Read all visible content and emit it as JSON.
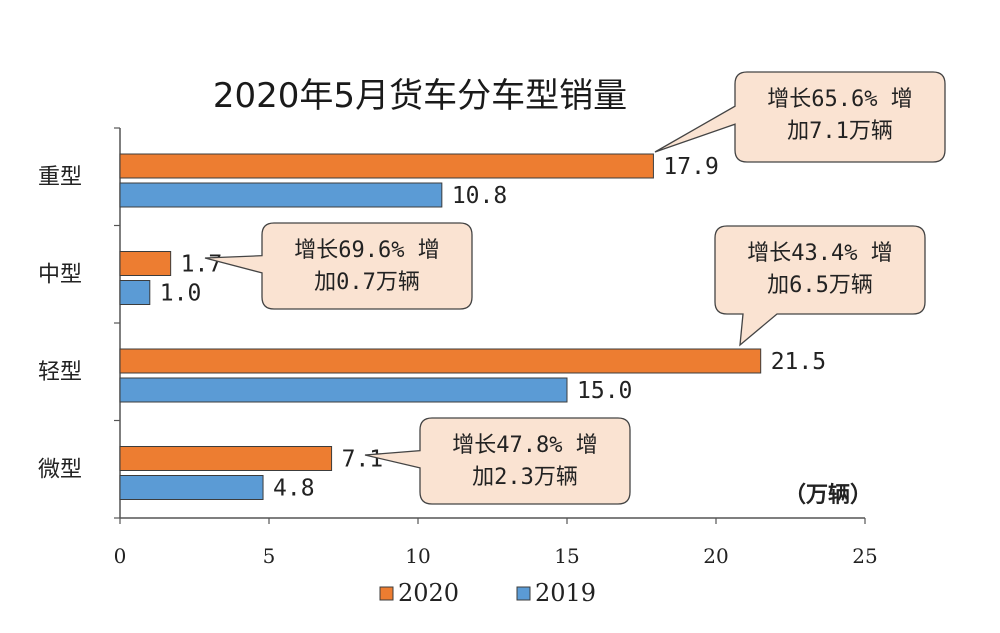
{
  "chart_data": {
    "type": "bar",
    "orientation": "horizontal",
    "title": "2020年5月货车分车型销量",
    "unit": "（万辆）",
    "categories": [
      "重型",
      "中型",
      "轻型",
      "微型"
    ],
    "series": [
      {
        "name": "2020",
        "color": "#ED7D31",
        "values": [
          17.9,
          1.7,
          21.5,
          7.1
        ],
        "labels": [
          "17.9",
          "1.7",
          "21.5",
          "7.1"
        ]
      },
      {
        "name": "2019",
        "color": "#5B9BD5",
        "values": [
          10.8,
          1.0,
          15.0,
          4.8
        ],
        "labels": [
          "10.8",
          "1.0",
          "15.0",
          "4.8"
        ]
      }
    ],
    "xlim": [
      0,
      25
    ],
    "xticks": [
      "0",
      "5",
      "10",
      "15",
      "20",
      "25"
    ],
    "grid": false,
    "legend": "bottom",
    "annotations": [
      {
        "category": "重型",
        "lines": [
          "增长65.6% 增",
          "加7.1万辆"
        ]
      },
      {
        "category": "中型",
        "lines": [
          "增长69.6% 增",
          "加0.7万辆"
        ]
      },
      {
        "category": "轻型",
        "lines": [
          "增长43.4% 增",
          "加6.5万辆"
        ]
      },
      {
        "category": "微型",
        "lines": [
          "增长47.8% 增",
          "加2.3万辆"
        ]
      }
    ],
    "callout_fill": "#FAE3D2",
    "callout_stroke": "#444444"
  }
}
